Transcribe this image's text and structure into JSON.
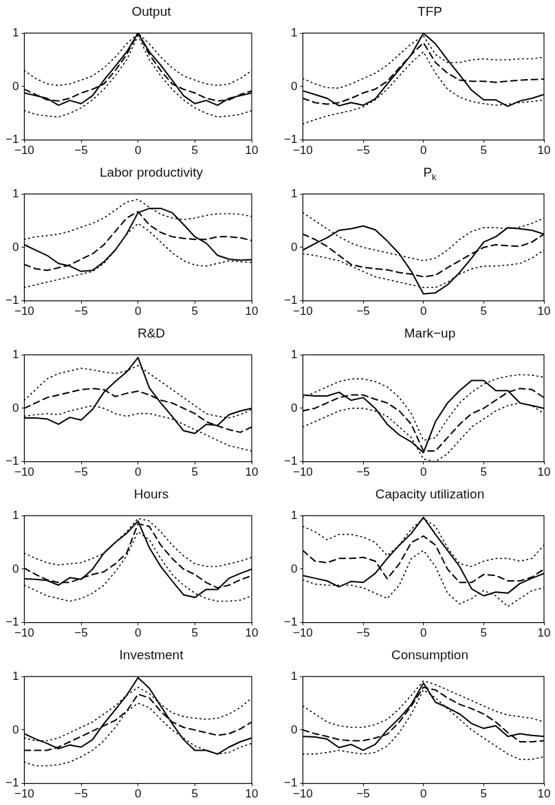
{
  "chart_data": [
    {
      "type": "line",
      "title": "Output",
      "x": [
        -10,
        -9,
        -8,
        -7,
        -6,
        -5,
        -4,
        -3,
        -2,
        -1,
        0,
        1,
        2,
        3,
        4,
        5,
        6,
        7,
        8,
        9,
        10
      ],
      "xlim": [
        -10,
        10
      ],
      "xticks": [
        -10,
        -5,
        0,
        5,
        10
      ],
      "ylim": [
        -1,
        1
      ],
      "yticks": [
        -1,
        0,
        1
      ],
      "grid": false,
      "legend": false,
      "marker": "none",
      "series": [
        {
          "color": "#000000",
          "line_style": "solid",
          "values": [
            -0.12,
            -0.17,
            -0.22,
            -0.35,
            -0.26,
            -0.32,
            -0.17,
            0.12,
            0.38,
            0.65,
            1.0,
            0.65,
            0.4,
            0.12,
            -0.17,
            -0.32,
            -0.26,
            -0.35,
            -0.22,
            -0.17,
            -0.12
          ]
        },
        {
          "color": "#000000",
          "line_style": "dashed",
          "values": [
            -0.05,
            -0.15,
            -0.25,
            -0.27,
            -0.22,
            -0.12,
            -0.05,
            0.05,
            0.3,
            0.6,
            1.0,
            0.6,
            0.3,
            0.05,
            -0.05,
            -0.12,
            -0.22,
            -0.27,
            -0.25,
            -0.15,
            -0.08
          ]
        },
        {
          "color": "#000000",
          "line_style": "dotted",
          "values": [
            0.3,
            0.15,
            0.05,
            0.02,
            0.05,
            0.12,
            0.2,
            0.35,
            0.55,
            0.8,
            1.0,
            0.8,
            0.55,
            0.35,
            0.2,
            0.12,
            0.05,
            0.02,
            0.05,
            0.15,
            0.3
          ]
        },
        {
          "color": "#000000",
          "line_style": "dotted",
          "values": [
            -0.45,
            -0.52,
            -0.55,
            -0.57,
            -0.5,
            -0.4,
            -0.25,
            -0.05,
            0.2,
            0.5,
            0.95,
            0.5,
            0.2,
            -0.05,
            -0.25,
            -0.4,
            -0.5,
            -0.57,
            -0.55,
            -0.52,
            -0.45
          ]
        }
      ]
    },
    {
      "type": "line",
      "title": "TFP",
      "x": [
        -10,
        -9,
        -8,
        -7,
        -6,
        -5,
        -4,
        -3,
        -2,
        -1,
        0,
        1,
        2,
        3,
        4,
        5,
        6,
        7,
        8,
        9,
        10
      ],
      "xlim": [
        -10,
        10
      ],
      "xticks": [
        -10,
        -5,
        0,
        5,
        10
      ],
      "ylim": [
        -1,
        1
      ],
      "yticks": [
        -1,
        0,
        1
      ],
      "grid": false,
      "legend": false,
      "marker": "none",
      "series": [
        {
          "color": "#000000",
          "line_style": "solid",
          "values": [
            -0.08,
            -0.15,
            -0.22,
            -0.36,
            -0.3,
            -0.35,
            -0.23,
            0.05,
            0.32,
            0.6,
            1.0,
            0.8,
            0.5,
            0.22,
            -0.07,
            -0.25,
            -0.25,
            -0.37,
            -0.27,
            -0.22,
            -0.15
          ]
        },
        {
          "color": "#000000",
          "line_style": "dashed",
          "values": [
            -0.22,
            -0.3,
            -0.33,
            -0.3,
            -0.22,
            -0.12,
            -0.05,
            0.1,
            0.35,
            0.6,
            0.82,
            0.45,
            0.25,
            0.12,
            0.1,
            0.1,
            0.08,
            0.1,
            0.12,
            0.13,
            0.14
          ]
        },
        {
          "color": "#000000",
          "line_style": "dotted",
          "values": [
            0.15,
            0.05,
            -0.02,
            -0.03,
            0.05,
            0.15,
            0.25,
            0.4,
            0.6,
            0.8,
            0.95,
            0.6,
            0.45,
            0.45,
            0.5,
            0.52,
            0.5,
            0.5,
            0.52,
            0.52,
            0.55
          ]
        },
        {
          "color": "#000000",
          "line_style": "dotted",
          "values": [
            -0.7,
            -0.62,
            -0.55,
            -0.5,
            -0.45,
            -0.38,
            -0.25,
            -0.05,
            0.2,
            0.45,
            0.65,
            0.25,
            -0.05,
            -0.2,
            -0.28,
            -0.32,
            -0.35,
            -0.33,
            -0.3,
            -0.28,
            -0.25
          ]
        }
      ]
    },
    {
      "type": "line",
      "title": "Labor productivity",
      "x": [
        -10,
        -9,
        -8,
        -7,
        -6,
        -5,
        -4,
        -3,
        -2,
        -1,
        0,
        1,
        2,
        3,
        4,
        5,
        6,
        7,
        8,
        9,
        10
      ],
      "xlim": [
        -10,
        10
      ],
      "xticks": [
        -10,
        -5,
        0,
        5,
        10
      ],
      "ylim": [
        -1,
        1
      ],
      "yticks": [
        -1,
        0,
        1
      ],
      "grid": false,
      "legend": false,
      "marker": "none",
      "series": [
        {
          "color": "#000000",
          "line_style": "solid",
          "values": [
            0.05,
            -0.05,
            -0.15,
            -0.3,
            -0.35,
            -0.45,
            -0.43,
            -0.27,
            -0.05,
            0.25,
            0.65,
            0.73,
            0.73,
            0.65,
            0.43,
            0.2,
            0.08,
            -0.15,
            -0.22,
            -0.24,
            -0.23
          ]
        },
        {
          "color": "#000000",
          "line_style": "dashed",
          "values": [
            -0.32,
            -0.4,
            -0.43,
            -0.38,
            -0.33,
            -0.22,
            -0.12,
            0.05,
            0.3,
            0.55,
            0.67,
            0.42,
            0.28,
            0.2,
            0.17,
            0.15,
            0.15,
            0.2,
            0.2,
            0.18,
            0.13
          ]
        },
        {
          "color": "#000000",
          "line_style": "dotted",
          "values": [
            0.15,
            0.2,
            0.22,
            0.25,
            0.3,
            0.38,
            0.45,
            0.55,
            0.7,
            0.85,
            0.9,
            0.75,
            0.62,
            0.55,
            0.52,
            0.55,
            0.6,
            0.63,
            0.63,
            0.62,
            0.58
          ]
        },
        {
          "color": "#000000",
          "line_style": "dotted",
          "values": [
            -0.75,
            -0.7,
            -0.65,
            -0.6,
            -0.55,
            -0.5,
            -0.45,
            -0.3,
            -0.05,
            0.25,
            0.45,
            0.3,
            0.1,
            -0.1,
            -0.25,
            -0.33,
            -0.35,
            -0.3,
            -0.25,
            -0.27,
            -0.28
          ]
        }
      ]
    },
    {
      "type": "line",
      "title": "P$_{k}$",
      "x": [
        -10,
        -9,
        -8,
        -7,
        -6,
        -5,
        -4,
        -3,
        -2,
        -1,
        0,
        1,
        2,
        3,
        4,
        5,
        6,
        7,
        8,
        9,
        10
      ],
      "xlim": [
        -10,
        10
      ],
      "xticks": [
        -10,
        -5,
        0,
        5,
        10
      ],
      "ylim": [
        -1,
        1
      ],
      "yticks": [
        -1,
        0,
        1
      ],
      "grid": false,
      "legend": false,
      "marker": "none",
      "series": [
        {
          "color": "#000000",
          "line_style": "solid",
          "values": [
            -0.05,
            0.07,
            0.18,
            0.32,
            0.35,
            0.4,
            0.33,
            0.12,
            -0.12,
            -0.45,
            -0.87,
            -0.85,
            -0.7,
            -0.47,
            -0.2,
            0.1,
            0.2,
            0.37,
            0.35,
            0.32,
            0.25
          ]
        },
        {
          "color": "#000000",
          "line_style": "dashed",
          "values": [
            0.25,
            0.15,
            0.02,
            -0.15,
            -0.32,
            -0.37,
            -0.4,
            -0.42,
            -0.47,
            -0.5,
            -0.55,
            -0.52,
            -0.38,
            -0.25,
            -0.12,
            0.0,
            0.05,
            0.03,
            0.02,
            0.1,
            0.25
          ]
        },
        {
          "color": "#000000",
          "line_style": "dotted",
          "values": [
            0.65,
            0.5,
            0.35,
            0.2,
            0.08,
            0.0,
            -0.05,
            -0.1,
            -0.15,
            -0.2,
            -0.25,
            -0.2,
            -0.05,
            0.15,
            0.3,
            0.37,
            0.37,
            0.35,
            0.38,
            0.45,
            0.55
          ]
        },
        {
          "color": "#000000",
          "line_style": "dotted",
          "values": [
            -0.12,
            -0.15,
            -0.2,
            -0.25,
            -0.35,
            -0.45,
            -0.55,
            -0.6,
            -0.65,
            -0.7,
            -0.75,
            -0.75,
            -0.65,
            -0.5,
            -0.4,
            -0.35,
            -0.35,
            -0.33,
            -0.3,
            -0.2,
            -0.05
          ]
        }
      ]
    },
    {
      "type": "line",
      "title": "R&D",
      "x": [
        -10,
        -9,
        -8,
        -7,
        -6,
        -5,
        -4,
        -3,
        -2,
        -1,
        0,
        1,
        2,
        3,
        4,
        5,
        6,
        7,
        8,
        9,
        10
      ],
      "xlim": [
        -10,
        10
      ],
      "xticks": [
        -10,
        -5,
        0,
        5,
        10
      ],
      "ylim": [
        -1,
        1
      ],
      "yticks": [
        -1,
        0,
        1
      ],
      "grid": false,
      "legend": false,
      "marker": "none",
      "series": [
        {
          "color": "#000000",
          "line_style": "solid",
          "values": [
            -0.18,
            -0.18,
            -0.2,
            -0.3,
            -0.17,
            -0.22,
            -0.02,
            0.3,
            0.5,
            0.68,
            0.95,
            0.38,
            0.1,
            -0.15,
            -0.42,
            -0.47,
            -0.3,
            -0.32,
            -0.12,
            -0.05,
            0.0
          ]
        },
        {
          "color": "#000000",
          "line_style": "dashed",
          "values": [
            0.0,
            0.1,
            0.2,
            0.25,
            0.3,
            0.35,
            0.37,
            0.35,
            0.22,
            0.28,
            0.32,
            0.25,
            0.15,
            0.1,
            0.0,
            -0.1,
            -0.25,
            -0.33,
            -0.4,
            -0.45,
            -0.35
          ]
        },
        {
          "color": "#000000",
          "line_style": "dotted",
          "values": [
            0.15,
            0.35,
            0.55,
            0.65,
            0.7,
            0.75,
            0.72,
            0.68,
            0.65,
            0.7,
            0.8,
            0.65,
            0.5,
            0.35,
            0.2,
            0.05,
            -0.1,
            -0.15,
            -0.18,
            -0.12,
            -0.02
          ]
        },
        {
          "color": "#000000",
          "line_style": "dotted",
          "values": [
            -0.15,
            -0.12,
            -0.1,
            -0.12,
            -0.05,
            0.0,
            0.05,
            0.0,
            -0.1,
            -0.15,
            -0.1,
            -0.1,
            -0.15,
            -0.2,
            -0.3,
            -0.4,
            -0.5,
            -0.6,
            -0.7,
            -0.75,
            -0.8
          ]
        }
      ]
    },
    {
      "type": "line",
      "title": "Mark−up",
      "x": [
        -10,
        -9,
        -8,
        -7,
        -6,
        -5,
        -4,
        -3,
        -2,
        -1,
        0,
        1,
        2,
        3,
        4,
        5,
        6,
        7,
        8,
        9,
        10
      ],
      "xlim": [
        -10,
        10
      ],
      "xticks": [
        -10,
        -5,
        0,
        5,
        10
      ],
      "ylim": [
        -1,
        1
      ],
      "yticks": [
        -1,
        0,
        1
      ],
      "grid": false,
      "legend": false,
      "marker": "none",
      "series": [
        {
          "color": "#000000",
          "line_style": "solid",
          "values": [
            0.25,
            0.23,
            0.23,
            0.3,
            0.15,
            0.2,
            0.0,
            -0.3,
            -0.5,
            -0.63,
            -0.83,
            -0.25,
            0.1,
            0.33,
            0.52,
            0.52,
            0.33,
            0.33,
            0.1,
            0.05,
            0.0
          ]
        },
        {
          "color": "#000000",
          "line_style": "dashed",
          "values": [
            -0.05,
            0.0,
            0.1,
            0.2,
            0.25,
            0.25,
            0.17,
            0.1,
            -0.05,
            -0.3,
            -0.8,
            -0.8,
            -0.55,
            -0.3,
            -0.1,
            0.0,
            0.15,
            0.3,
            0.37,
            0.35,
            0.2
          ]
        },
        {
          "color": "#000000",
          "line_style": "dotted",
          "values": [
            0.2,
            0.3,
            0.4,
            0.5,
            0.55,
            0.55,
            0.5,
            0.4,
            0.2,
            -0.1,
            -0.6,
            -0.55,
            -0.2,
            0.1,
            0.3,
            0.45,
            0.55,
            0.6,
            0.63,
            0.62,
            0.58
          ]
        },
        {
          "color": "#000000",
          "line_style": "dotted",
          "values": [
            -0.35,
            -0.25,
            -0.15,
            -0.05,
            0.0,
            0.0,
            -0.05,
            -0.15,
            -0.35,
            -0.55,
            -0.95,
            -1.0,
            -0.85,
            -0.6,
            -0.35,
            -0.2,
            -0.05,
            0.05,
            0.1,
            0.05,
            -0.1
          ]
        }
      ]
    },
    {
      "type": "line",
      "title": "Hours",
      "x": [
        -10,
        -9,
        -8,
        -7,
        -6,
        -5,
        -4,
        -3,
        -2,
        -1,
        0,
        1,
        2,
        3,
        4,
        5,
        6,
        7,
        8,
        9,
        10
      ],
      "xlim": [
        -10,
        10
      ],
      "xticks": [
        -10,
        -5,
        0,
        5,
        10
      ],
      "ylim": [
        -1,
        1
      ],
      "yticks": [
        -1,
        0,
        1
      ],
      "grid": false,
      "legend": false,
      "marker": "none",
      "series": [
        {
          "color": "#000000",
          "line_style": "solid",
          "values": [
            -0.18,
            -0.19,
            -0.21,
            -0.3,
            -0.16,
            -0.19,
            0.0,
            0.3,
            0.5,
            0.67,
            0.9,
            0.4,
            0.05,
            -0.22,
            -0.48,
            -0.53,
            -0.38,
            -0.38,
            -0.17,
            -0.08,
            0.0
          ]
        },
        {
          "color": "#000000",
          "line_style": "dashed",
          "values": [
            0.02,
            -0.1,
            -0.2,
            -0.25,
            -0.25,
            -0.17,
            -0.1,
            -0.05,
            0.1,
            0.3,
            0.85,
            0.8,
            0.45,
            0.2,
            0.0,
            -0.1,
            -0.25,
            -0.35,
            -0.3,
            -0.2,
            -0.12
          ]
        },
        {
          "color": "#000000",
          "line_style": "dotted",
          "values": [
            0.3,
            0.2,
            0.12,
            0.08,
            0.1,
            0.12,
            0.2,
            0.3,
            0.5,
            0.7,
            0.95,
            0.9,
            0.7,
            0.45,
            0.25,
            0.1,
            0.05,
            0.05,
            0.1,
            0.15,
            0.22
          ]
        },
        {
          "color": "#000000",
          "line_style": "dotted",
          "values": [
            -0.3,
            -0.4,
            -0.5,
            -0.55,
            -0.6,
            -0.55,
            -0.45,
            -0.3,
            -0.05,
            0.25,
            0.7,
            0.55,
            0.2,
            -0.1,
            -0.3,
            -0.45,
            -0.55,
            -0.6,
            -0.6,
            -0.58,
            -0.5
          ]
        }
      ]
    },
    {
      "type": "line",
      "title": "Capacity utilization",
      "x": [
        -10,
        -9,
        -8,
        -7,
        -6,
        -5,
        -4,
        -3,
        -2,
        -1,
        0,
        1,
        2,
        3,
        4,
        5,
        6,
        7,
        8,
        9,
        10
      ],
      "xlim": [
        -10,
        10
      ],
      "xticks": [
        -10,
        -5,
        0,
        5,
        10
      ],
      "ylim": [
        -1,
        1
      ],
      "yticks": [
        -1,
        0,
        1
      ],
      "grid": false,
      "legend": false,
      "marker": "none",
      "series": [
        {
          "color": "#000000",
          "line_style": "solid",
          "values": [
            -0.12,
            -0.17,
            -0.22,
            -0.33,
            -0.23,
            -0.25,
            -0.08,
            0.2,
            0.45,
            0.67,
            0.97,
            0.65,
            0.35,
            0.05,
            -0.37,
            -0.5,
            -0.43,
            -0.45,
            -0.27,
            -0.17,
            -0.08
          ]
        },
        {
          "color": "#000000",
          "line_style": "dashed",
          "values": [
            0.35,
            0.15,
            0.12,
            0.2,
            0.2,
            0.22,
            0.15,
            -0.18,
            0.1,
            0.5,
            0.62,
            0.45,
            0.0,
            -0.25,
            -0.25,
            -0.1,
            -0.12,
            -0.22,
            -0.22,
            -0.15,
            0.0
          ]
        },
        {
          "color": "#000000",
          "line_style": "dotted",
          "values": [
            0.8,
            0.7,
            0.55,
            0.65,
            0.65,
            0.6,
            0.5,
            0.25,
            0.45,
            0.75,
            0.95,
            0.8,
            0.4,
            0.1,
            0.05,
            0.15,
            0.2,
            0.2,
            0.15,
            0.2,
            0.45
          ]
        },
        {
          "color": "#000000",
          "line_style": "dotted",
          "values": [
            -0.2,
            -0.28,
            -0.3,
            -0.3,
            -0.3,
            -0.35,
            -0.45,
            -0.55,
            -0.3,
            0.2,
            0.35,
            0.05,
            -0.45,
            -0.65,
            -0.55,
            -0.4,
            -0.5,
            -0.7,
            -0.55,
            -0.4,
            -0.35
          ]
        }
      ]
    },
    {
      "type": "line",
      "title": "Investment",
      "x": [
        -10,
        -9,
        -8,
        -7,
        -6,
        -5,
        -4,
        -3,
        -2,
        -1,
        0,
        1,
        2,
        3,
        4,
        5,
        6,
        7,
        8,
        9,
        10
      ],
      "xlim": [
        -10,
        10
      ],
      "xticks": [
        -10,
        -5,
        0,
        5,
        10
      ],
      "ylim": [
        -1,
        1
      ],
      "yticks": [
        -1,
        0,
        1
      ],
      "grid": false,
      "legend": false,
      "marker": "none",
      "series": [
        {
          "color": "#000000",
          "line_style": "solid",
          "values": [
            -0.07,
            -0.17,
            -0.25,
            -0.35,
            -0.28,
            -0.32,
            -0.18,
            0.12,
            0.38,
            0.65,
            0.98,
            0.78,
            0.45,
            0.12,
            -0.18,
            -0.38,
            -0.38,
            -0.45,
            -0.32,
            -0.22,
            -0.15
          ]
        },
        {
          "color": "#000000",
          "line_style": "dashed",
          "values": [
            -0.38,
            -0.38,
            -0.38,
            -0.32,
            -0.22,
            -0.12,
            -0.02,
            0.08,
            0.18,
            0.35,
            0.67,
            0.6,
            0.35,
            0.15,
            0.05,
            0.0,
            -0.05,
            -0.1,
            -0.07,
            0.02,
            0.15
          ]
        },
        {
          "color": "#000000",
          "line_style": "dotted",
          "values": [
            -0.15,
            -0.2,
            -0.2,
            -0.15,
            -0.05,
            0.05,
            0.15,
            0.3,
            0.45,
            0.65,
            0.8,
            0.68,
            0.48,
            0.32,
            0.25,
            0.22,
            0.2,
            0.22,
            0.3,
            0.42,
            0.6
          ]
        },
        {
          "color": "#000000",
          "line_style": "dotted",
          "values": [
            -0.6,
            -0.67,
            -0.67,
            -0.65,
            -0.6,
            -0.5,
            -0.38,
            -0.2,
            0.05,
            0.35,
            0.5,
            0.42,
            0.2,
            0.0,
            -0.15,
            -0.3,
            -0.38,
            -0.45,
            -0.42,
            -0.32,
            -0.25
          ]
        }
      ]
    },
    {
      "type": "line",
      "title": "Consumption",
      "x": [
        -10,
        -9,
        -8,
        -7,
        -6,
        -5,
        -4,
        -3,
        -2,
        -1,
        0,
        1,
        2,
        3,
        4,
        5,
        6,
        7,
        8,
        9,
        10
      ],
      "xlim": [
        -10,
        10
      ],
      "xticks": [
        -10,
        -5,
        0,
        5,
        10
      ],
      "ylim": [
        -1,
        1
      ],
      "yticks": [
        -1,
        0,
        1
      ],
      "grid": false,
      "legend": false,
      "marker": "none",
      "series": [
        {
          "color": "#000000",
          "line_style": "solid",
          "values": [
            -0.12,
            -0.13,
            -0.17,
            -0.33,
            -0.27,
            -0.38,
            -0.27,
            0.0,
            0.22,
            0.48,
            0.88,
            0.52,
            0.42,
            0.3,
            0.12,
            0.03,
            0.08,
            -0.12,
            -0.07,
            -0.1,
            -0.12
          ]
        },
        {
          "color": "#000000",
          "line_style": "dashed",
          "values": [
            0.0,
            -0.07,
            -0.12,
            -0.18,
            -0.2,
            -0.2,
            -0.15,
            -0.08,
            0.15,
            0.45,
            0.8,
            0.75,
            0.6,
            0.48,
            0.4,
            0.3,
            0.15,
            -0.05,
            -0.22,
            -0.22,
            -0.2
          ]
        },
        {
          "color": "#000000",
          "line_style": "dotted",
          "values": [
            0.45,
            0.3,
            0.15,
            0.08,
            0.05,
            0.05,
            0.1,
            0.2,
            0.4,
            0.65,
            0.92,
            0.85,
            0.75,
            0.65,
            0.55,
            0.45,
            0.35,
            0.28,
            0.25,
            0.22,
            0.15
          ]
        },
        {
          "color": "#000000",
          "line_style": "dotted",
          "values": [
            -0.45,
            -0.45,
            -0.42,
            -0.38,
            -0.42,
            -0.45,
            -0.42,
            -0.3,
            -0.05,
            0.3,
            0.75,
            0.6,
            0.4,
            0.2,
            0.0,
            -0.15,
            -0.3,
            -0.45,
            -0.55,
            -0.55,
            -0.5
          ]
        }
      ]
    }
  ]
}
